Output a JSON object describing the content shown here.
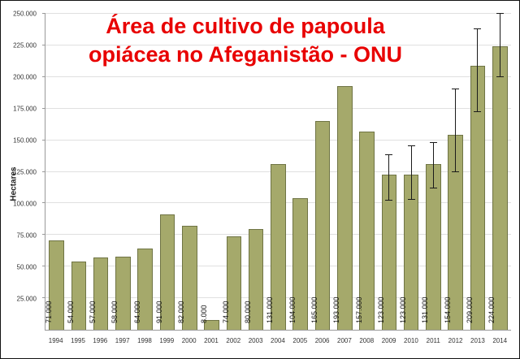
{
  "title": {
    "line1": "Área de cultivo de papoula",
    "line2": "opiácea no Afeganistão - ONU"
  },
  "ylabel": "Hectares",
  "colors": {
    "bar": "#a5a96b",
    "bar_border": "#6f7444",
    "title": "#e80000",
    "grid": "#e0e0e0",
    "axis": "#999999",
    "error_bar": "#1a1a1a"
  },
  "chart_data": {
    "type": "bar",
    "title": "Área de cultivo de papoula opiácea no Afeganistão - ONU",
    "ylabel": "Hectares",
    "ylim": [
      0,
      250000
    ],
    "grid": true,
    "legend": "none",
    "categories": [
      "1994",
      "1995",
      "1996",
      "1997",
      "1998",
      "1999",
      "2000",
      "2001",
      "2002",
      "2003",
      "2004",
      "2005",
      "2006",
      "2007",
      "2008",
      "2009",
      "2010",
      "2011",
      "2012",
      "2013",
      "2014"
    ],
    "values": [
      71000,
      54000,
      57000,
      58000,
      64000,
      91000,
      82000,
      8000,
      74000,
      80000,
      131000,
      104000,
      165000,
      193000,
      157000,
      123000,
      123000,
      131000,
      154000,
      209000,
      224000
    ],
    "bar_labels": [
      "71.000",
      "54.000",
      "57.000",
      "58.000",
      "64.000",
      "91.000",
      "82.000",
      "8.000",
      "74.000",
      "80.000",
      "131.000",
      "104.000",
      "165.000",
      "193.000",
      "157.000",
      "123.000",
      "123.000",
      "131.000",
      "154.000",
      "209.000",
      "224.000"
    ],
    "error_low": [
      null,
      null,
      null,
      null,
      null,
      null,
      null,
      null,
      null,
      null,
      null,
      null,
      null,
      null,
      null,
      102000,
      103000,
      112000,
      125000,
      172000,
      200000
    ],
    "error_high": [
      null,
      null,
      null,
      null,
      null,
      null,
      null,
      null,
      null,
      null,
      null,
      null,
      null,
      null,
      null,
      138000,
      145000,
      148000,
      190000,
      238000,
      250000
    ],
    "yticks": [
      "25.000",
      "50.000",
      "75.000",
      "100.000",
      "125.000",
      "150.000",
      "175.000",
      "200.000",
      "225.000",
      "250.000"
    ]
  }
}
